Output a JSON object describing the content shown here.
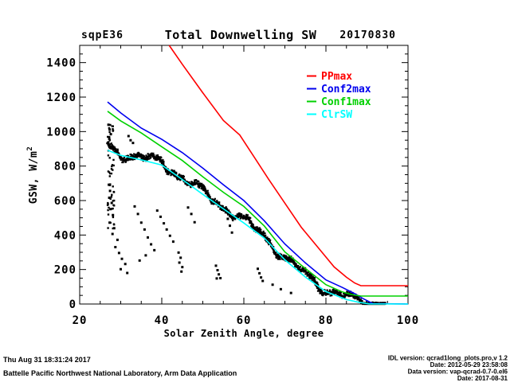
{
  "header": {
    "site": "sqpE36",
    "title": "Total Downwelling SW",
    "date": "20170830"
  },
  "axes": {
    "xlabel": "Solar Zenith Angle, degree",
    "ylabel_base": "GSW, W/m",
    "ylabel_sup": "2",
    "x_range": [
      20,
      100
    ],
    "x_major_ticks": [
      20,
      40,
      60,
      80,
      100
    ],
    "x_minor_step": 5,
    "y_range": [
      0,
      1500
    ],
    "y_major_ticks": [
      0,
      200,
      400,
      600,
      800,
      1000,
      1200,
      1400
    ],
    "y_minor_step": 50
  },
  "legend": {
    "position": "upper-right-inside",
    "items": [
      {
        "label": "PPmax",
        "color": "#ff0000"
      },
      {
        "label": "Conf2max",
        "color": "#0000ee"
      },
      {
        "label": "Conf1max",
        "color": "#00d000"
      },
      {
        "label": "ClrSW",
        "color": "#00ffff"
      }
    ]
  },
  "footer": {
    "left_line1": "Thu Aug 31 18:31:24 2017",
    "left_line2": "Battelle Pacific Northwest National Laboratory, Arm Data Application",
    "right_line1": "IDL version: qcrad1long_plots.pro,v 1.2",
    "right_line2": "Date: 2012-05-29 23:58:08",
    "right_line3": "Data version: vap-qcrad-0.7-0.el6",
    "right_line4": "Date: 2017-08-31"
  },
  "chart_data": {
    "type": "scatter",
    "title": "Total Downwelling SW",
    "xlabel": "Solar Zenith Angle, degree",
    "ylabel": "GSW, W/m^2",
    "xlim": [
      20,
      100
    ],
    "ylim": [
      0,
      1500
    ],
    "grid": false,
    "legend_position": "upper right inside",
    "series": [
      {
        "name": "PPmax",
        "type": "line",
        "color": "#ff0000",
        "points": [
          [
            41.8,
            1500
          ],
          [
            45,
            1390
          ],
          [
            50,
            1225
          ],
          [
            55,
            1065
          ],
          [
            59,
            980
          ],
          [
            63,
            835
          ],
          [
            66,
            725
          ],
          [
            70,
            585
          ],
          [
            74,
            445
          ],
          [
            78,
            330
          ],
          [
            82,
            215
          ],
          [
            85,
            155
          ],
          [
            87,
            122
          ],
          [
            88.5,
            106
          ],
          [
            100,
            106
          ]
        ]
      },
      {
        "name": "Conf2max",
        "type": "line",
        "color": "#0000ee",
        "points": [
          [
            26.8,
            1172
          ],
          [
            30,
            1108
          ],
          [
            35,
            1020
          ],
          [
            40,
            955
          ],
          [
            45,
            878
          ],
          [
            50,
            788
          ],
          [
            55,
            692
          ],
          [
            60,
            600
          ],
          [
            65,
            482
          ],
          [
            70,
            348
          ],
          [
            75,
            238
          ],
          [
            80,
            140
          ],
          [
            84,
            96
          ],
          [
            87,
            60
          ],
          [
            89,
            32
          ],
          [
            91.5,
            2
          ],
          [
            100,
            0
          ]
        ]
      },
      {
        "name": "Conf1max",
        "type": "line",
        "color": "#00d000",
        "points": [
          [
            26.8,
            1118
          ],
          [
            30,
            1062
          ],
          [
            35,
            992
          ],
          [
            40,
            912
          ],
          [
            45,
            832
          ],
          [
            50,
            738
          ],
          [
            55,
            648
          ],
          [
            60,
            566
          ],
          [
            65,
            452
          ],
          [
            70,
            302
          ],
          [
            75,
            206
          ],
          [
            80,
            112
          ],
          [
            84,
            70
          ],
          [
            86,
            56
          ],
          [
            88.5,
            46
          ],
          [
            100,
            46
          ]
        ]
      },
      {
        "name": "ClrSW",
        "type": "line",
        "color": "#00ffff",
        "points": [
          [
            26.8,
            892
          ],
          [
            30,
            862
          ],
          [
            35,
            836
          ],
          [
            40,
            806
          ],
          [
            45,
            722
          ],
          [
            50,
            636
          ],
          [
            55,
            552
          ],
          [
            60,
            470
          ],
          [
            65,
            382
          ],
          [
            70,
            256
          ],
          [
            75,
            156
          ],
          [
            80,
            72
          ],
          [
            85,
            26
          ],
          [
            88,
            10
          ],
          [
            90.5,
            1
          ],
          [
            100,
            0
          ]
        ]
      },
      {
        "name": "GSW observations",
        "type": "scatter",
        "color": "#000000",
        "band": {
          "follows": "ClrSW",
          "sza_range": [
            26.8,
            94.5
          ],
          "center_offset": 12,
          "wiggle": [
            [
              24,
              0.52,
              1.0
            ],
            [
              13,
              1.17,
              0.3
            ],
            [
              7,
              2.35,
              2.1
            ]
          ],
          "value_spread": 34,
          "points_per_step": 3,
          "step_deg": 0.16,
          "left_smear": {
            "sza": [
              26.8,
              28.4
            ],
            "value": [
              430,
              1040
            ],
            "count": 55
          },
          "seed": 20170830
        },
        "outliers": [
          [
            27.0,
            1040
          ],
          [
            27.3,
            1012
          ],
          [
            27.6,
            985
          ],
          [
            27.2,
            958
          ],
          [
            31.9,
            974
          ],
          [
            32.4,
            950
          ],
          [
            33.0,
            934
          ],
          [
            27.1,
            692
          ],
          [
            27.4,
            656
          ],
          [
            27.2,
            616
          ],
          [
            27.8,
            586
          ],
          [
            27.5,
            550
          ],
          [
            28.1,
            516
          ],
          [
            27.3,
            472
          ],
          [
            28.4,
            440
          ],
          [
            28.0,
            406
          ],
          [
            29.2,
            372
          ],
          [
            28.7,
            330
          ],
          [
            29.6,
            296
          ],
          [
            30.3,
            262
          ],
          [
            31.1,
            232
          ],
          [
            30.0,
            202
          ],
          [
            31.6,
            180
          ],
          [
            33.4,
            566
          ],
          [
            34.2,
            522
          ],
          [
            35.0,
            472
          ],
          [
            35.8,
            432
          ],
          [
            36.6,
            386
          ],
          [
            37.4,
            346
          ],
          [
            38.2,
            312
          ],
          [
            36.1,
            282
          ],
          [
            34.6,
            252
          ],
          [
            38.9,
            542
          ],
          [
            39.7,
            506
          ],
          [
            40.5,
            468
          ],
          [
            41.2,
            432
          ],
          [
            42.0,
            396
          ],
          [
            42.8,
            362
          ],
          [
            44.1,
            298
          ],
          [
            44.6,
            268
          ],
          [
            44.3,
            240
          ],
          [
            45.0,
            214
          ],
          [
            44.8,
            188
          ],
          [
            46.4,
            560
          ],
          [
            47.2,
            522
          ],
          [
            48.0,
            474
          ],
          [
            53.2,
            222
          ],
          [
            53.6,
            196
          ],
          [
            53.9,
            172
          ],
          [
            54.3,
            150
          ],
          [
            53.4,
            148
          ],
          [
            55.6,
            532
          ],
          [
            56.1,
            494
          ],
          [
            56.6,
            454
          ],
          [
            57.1,
            414
          ],
          [
            63.4,
            204
          ],
          [
            63.8,
            178
          ],
          [
            64.2,
            154
          ],
          [
            64.6,
            134
          ],
          [
            67.0,
            112
          ],
          [
            69.0,
            86
          ],
          [
            71.5,
            64
          ]
        ]
      }
    ]
  }
}
